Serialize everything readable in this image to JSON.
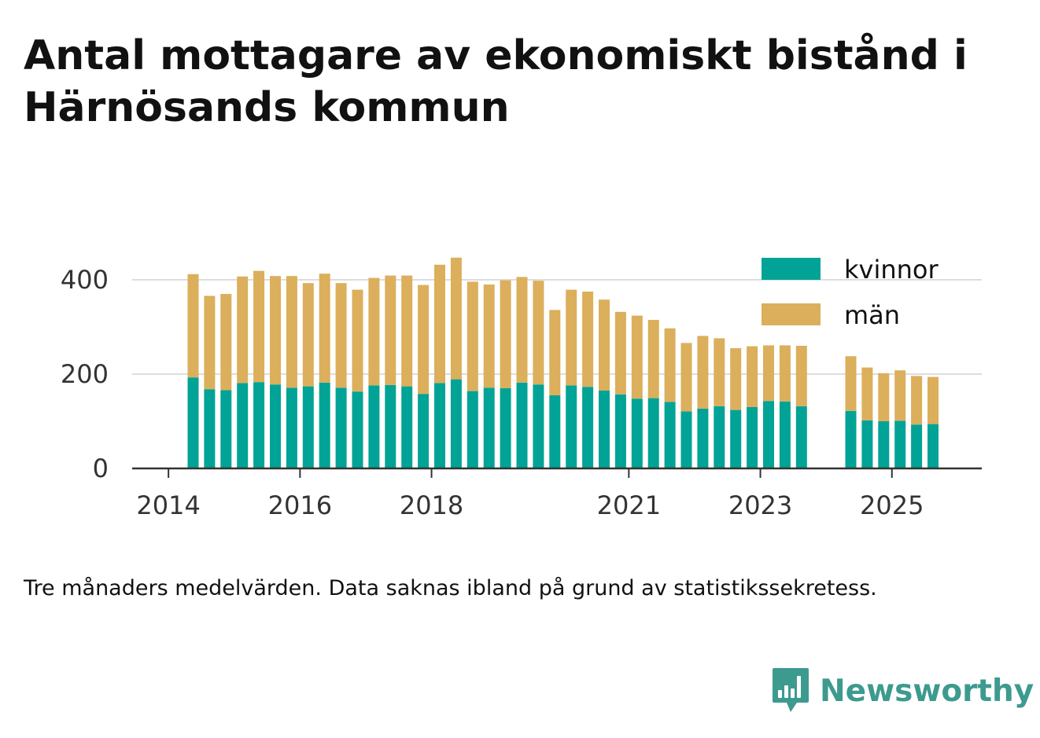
{
  "title": "Antal mottagare av ekonomiskt bistånd i Härnösands kommun",
  "note": "Tre månaders medelvärden. Data saknas ibland på grund av statistikssekretess.",
  "brand": {
    "name": "Newsworthy",
    "icon": "bar-chart-speech-bubble-icon",
    "color": "#3d9a8f"
  },
  "chart_data": {
    "type": "bar",
    "stacked": true,
    "grid": true,
    "legend_position": "top-right",
    "ylim": [
      0,
      450
    ],
    "yticks": [
      0,
      200,
      400
    ],
    "xticks": [
      "2014",
      "2016",
      "2018",
      "2021",
      "2023",
      "2025"
    ],
    "x": [
      "2014Q2",
      "2014Q3",
      "2014Q4",
      "2015Q1",
      "2015Q2",
      "2015Q3",
      "2015Q4",
      "2016Q1",
      "2016Q2",
      "2016Q3",
      "2016Q4",
      "2017Q1",
      "2017Q2",
      "2017Q3",
      "2017Q4",
      "2018Q1",
      "2018Q2",
      "2018Q3",
      "2018Q4",
      "2019Q1",
      "2019Q2",
      "2019Q3",
      "2019Q4",
      "2020Q1",
      "2020Q2",
      "2020Q3",
      "2020Q4",
      "2021Q1",
      "2021Q2",
      "2021Q3",
      "2021Q4",
      "2022Q1",
      "2022Q2",
      "2022Q3",
      "2022Q4",
      "2023Q1",
      "2023Q2",
      "2023Q3",
      "2023Q4",
      "2024Q1",
      "2024Q2",
      "2024Q3",
      "2024Q4",
      "2025Q1",
      "2025Q2",
      "2025Q3"
    ],
    "series": [
      {
        "name": "kvinnor",
        "color": "#00a396",
        "values": [
          193,
          168,
          166,
          181,
          183,
          178,
          171,
          174,
          182,
          171,
          163,
          176,
          177,
          174,
          158,
          181,
          189,
          164,
          171,
          170,
          182,
          178,
          155,
          176,
          173,
          165,
          157,
          148,
          149,
          141,
          121,
          127,
          132,
          124,
          130,
          143,
          142,
          132,
          null,
          null,
          122,
          102,
          100,
          101,
          93,
          94
        ]
      },
      {
        "name": "män",
        "color": "#dbaf5b",
        "values": [
          219,
          198,
          204,
          226,
          236,
          230,
          237,
          219,
          231,
          222,
          216,
          228,
          232,
          235,
          231,
          251,
          258,
          232,
          219,
          229,
          224,
          220,
          181,
          203,
          202,
          193,
          175,
          176,
          166,
          156,
          145,
          154,
          144,
          131,
          129,
          118,
          119,
          128,
          null,
          null,
          116,
          112,
          102,
          107,
          103,
          100
        ]
      }
    ]
  }
}
